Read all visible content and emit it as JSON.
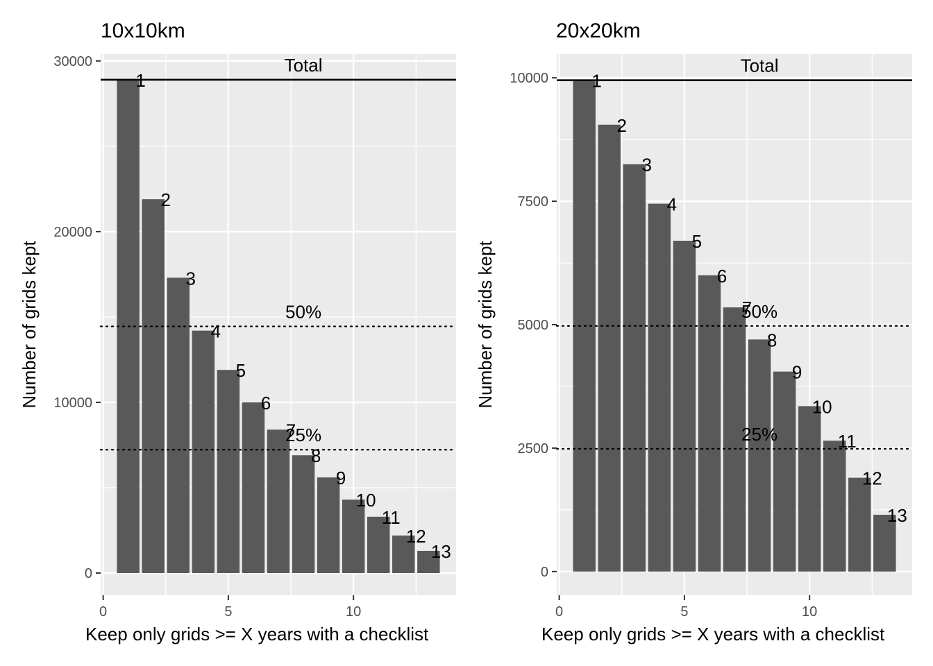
{
  "chart_data": [
    {
      "type": "bar",
      "title": "10x10km",
      "xlabel": "Keep only grids >= X years with a checklist",
      "ylabel": "Number of grids kept",
      "x": [
        1,
        2,
        3,
        4,
        5,
        6,
        7,
        8,
        9,
        10,
        11,
        12,
        13
      ],
      "values": [
        28900,
        21900,
        17300,
        14200,
        11900,
        10000,
        8400,
        6900,
        5600,
        4300,
        3300,
        2200,
        1300
      ],
      "bar_labels": [
        "1",
        "2",
        "3",
        "4",
        "5",
        "6",
        "7",
        "8",
        "9",
        "10",
        "11",
        "12",
        "13"
      ],
      "xlim": [
        -0.1,
        14.1
      ],
      "ylim": [
        -1300,
        30400
      ],
      "xticks": [
        0,
        5,
        10
      ],
      "xtick_labels": [
        "0",
        "5",
        "10"
      ],
      "yticks": [
        0,
        10000,
        20000,
        30000
      ],
      "ytick_labels": [
        "0",
        "10000",
        "20000",
        "30000"
      ],
      "reference_lines": [
        {
          "label": "Total",
          "value": 28900,
          "style": "solid",
          "label_x": 8
        },
        {
          "label": "50%",
          "value": 14450,
          "style": "dotted",
          "label_x": 8
        },
        {
          "label": "25%",
          "value": 7225,
          "style": "dotted",
          "label_x": 8
        }
      ],
      "bar_color": "#595959",
      "panel_background": "#ebebeb",
      "grid": true
    },
    {
      "type": "bar",
      "title": "20x20km",
      "xlabel": "Keep only grids >= X years with a checklist",
      "ylabel": "Number of grids kept",
      "x": [
        1,
        2,
        3,
        4,
        5,
        6,
        7,
        8,
        9,
        10,
        11,
        12,
        13
      ],
      "values": [
        9950,
        9050,
        8250,
        7450,
        6700,
        6000,
        5350,
        4700,
        4050,
        3350,
        2650,
        1900,
        1150
      ],
      "bar_labels": [
        "1",
        "2",
        "3",
        "4",
        "5",
        "6",
        "7",
        "8",
        "9",
        "10",
        "11",
        "12",
        "13"
      ],
      "xlim": [
        -0.1,
        14.1
      ],
      "ylim": [
        -480,
        10480
      ],
      "xticks": [
        0,
        5,
        10
      ],
      "xtick_labels": [
        "0",
        "5",
        "10"
      ],
      "yticks": [
        0,
        2500,
        5000,
        7500,
        10000
      ],
      "ytick_labels": [
        "0",
        "2500",
        "5000",
        "7500",
        "10000"
      ],
      "reference_lines": [
        {
          "label": "Total",
          "value": 9950,
          "style": "solid",
          "label_x": 8
        },
        {
          "label": "50%",
          "value": 4975,
          "style": "dotted",
          "label_x": 8
        },
        {
          "label": "25%",
          "value": 2487,
          "style": "dotted",
          "label_x": 8
        }
      ],
      "bar_color": "#595959",
      "panel_background": "#ebebeb",
      "grid": true
    }
  ]
}
